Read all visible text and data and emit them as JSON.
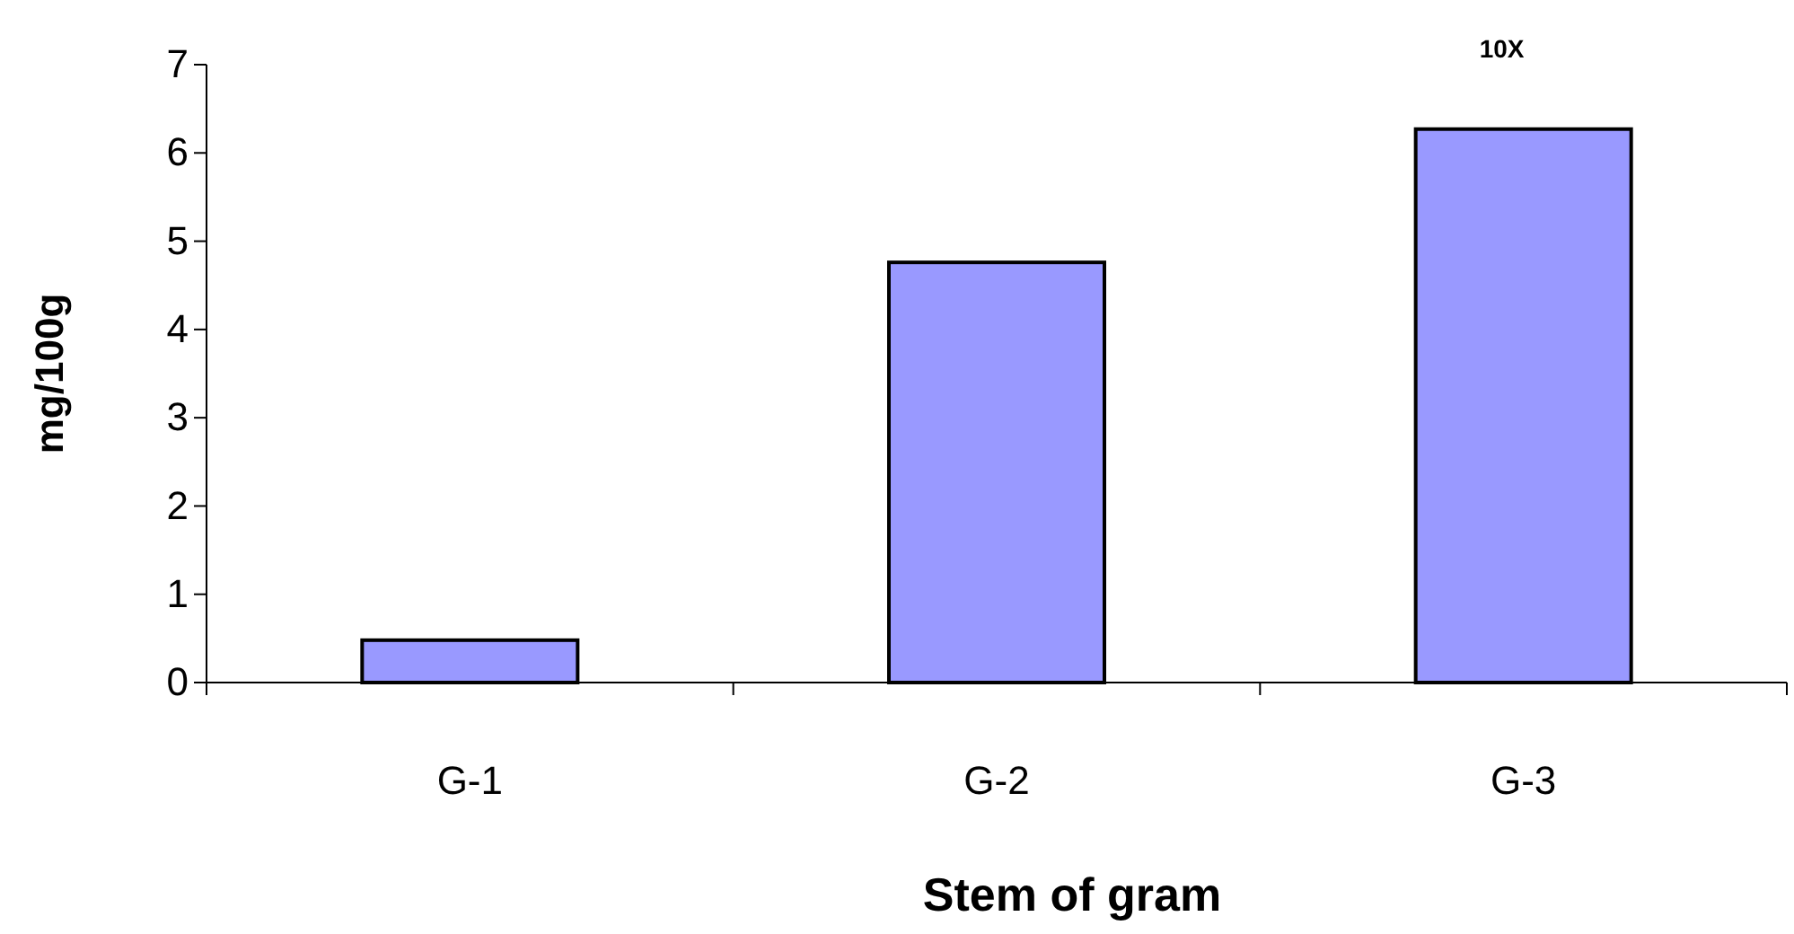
{
  "chart_data": {
    "type": "bar",
    "xlabel": "Stem of gram",
    "ylabel": "mg/100g",
    "categories": [
      "G-1",
      "G-2",
      "G-3"
    ],
    "values": [
      0.48,
      4.76,
      6.27
    ],
    "color": "#9999ff",
    "ylim": [
      0,
      7
    ],
    "yticks": [
      0,
      1,
      2,
      3,
      4,
      5,
      6,
      7
    ],
    "annotations": [
      "10X"
    ],
    "grid": false
  }
}
